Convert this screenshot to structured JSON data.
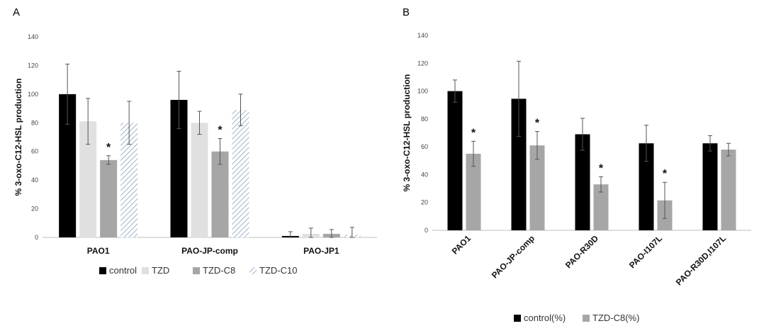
{
  "chart_data": [
    {
      "panel_label": "A",
      "type": "bar",
      "ylabel": "% 3-oxo-C12-HSL production",
      "ylim": [
        0,
        140
      ],
      "yticks": [
        0,
        20,
        40,
        60,
        80,
        100,
        120,
        140
      ],
      "categories": [
        "PAO1",
        "PAO-JP-comp",
        "PAO-JP1"
      ],
      "legend_position": "bottom",
      "series": [
        {
          "name": "control",
          "color": "#000000",
          "pattern": "solid",
          "values": [
            100,
            96,
            1
          ],
          "errors": [
            21,
            20,
            3
          ]
        },
        {
          "name": "TZD",
          "color": "#e0e0e0",
          "pattern": "solid",
          "values": [
            81,
            80,
            2.5
          ],
          "errors": [
            16,
            8,
            4
          ]
        },
        {
          "name": "TZD-C8",
          "color": "#a6a6a6",
          "pattern": "solid",
          "values": [
            54,
            60,
            2.5
          ],
          "errors": [
            3,
            9,
            3
          ]
        },
        {
          "name": "TZD-C10",
          "color": "#9fb3c8",
          "pattern": "hatch",
          "values": [
            80,
            89,
            2
          ],
          "errors": [
            15,
            11,
            5
          ]
        }
      ],
      "annotations": [
        {
          "text": "*",
          "category": "PAO1",
          "series": "TZD-C8"
        },
        {
          "text": "*",
          "category": "PAO-JP-comp",
          "series": "TZD-C8"
        }
      ]
    },
    {
      "panel_label": "B",
      "type": "bar",
      "ylabel": "% 3-oxo-C12-HSL production",
      "ylim": [
        0,
        140
      ],
      "yticks": [
        0,
        20,
        40,
        60,
        80,
        100,
        120,
        140
      ],
      "categories": [
        "PAO1",
        "PAO-JP-comp",
        "PAO-R30D",
        "PAO-I107L",
        "PAO-R30D,I107L"
      ],
      "legend_position": "bottom",
      "series": [
        {
          "name": "control(%)",
          "color": "#000000",
          "pattern": "solid",
          "values": [
            100,
            94.5,
            69,
            62.5,
            62.5
          ],
          "errors": [
            8,
            27,
            11.5,
            13,
            5.5
          ]
        },
        {
          "name": "TZD-C8(%)",
          "color": "#a6a6a6",
          "pattern": "solid",
          "values": [
            55,
            61,
            33,
            21.5,
            58
          ],
          "errors": [
            9,
            10,
            5.5,
            13,
            4.5
          ]
        }
      ],
      "annotations": [
        {
          "text": "*",
          "category": "PAO1",
          "series": "TZD-C8(%)"
        },
        {
          "text": "*",
          "category": "PAO-JP-comp",
          "series": "TZD-C8(%)"
        },
        {
          "text": "*",
          "category": "PAO-R30D",
          "series": "TZD-C8(%)"
        },
        {
          "text": "*",
          "category": "PAO-I107L",
          "series": "TZD-C8(%)"
        }
      ]
    }
  ]
}
